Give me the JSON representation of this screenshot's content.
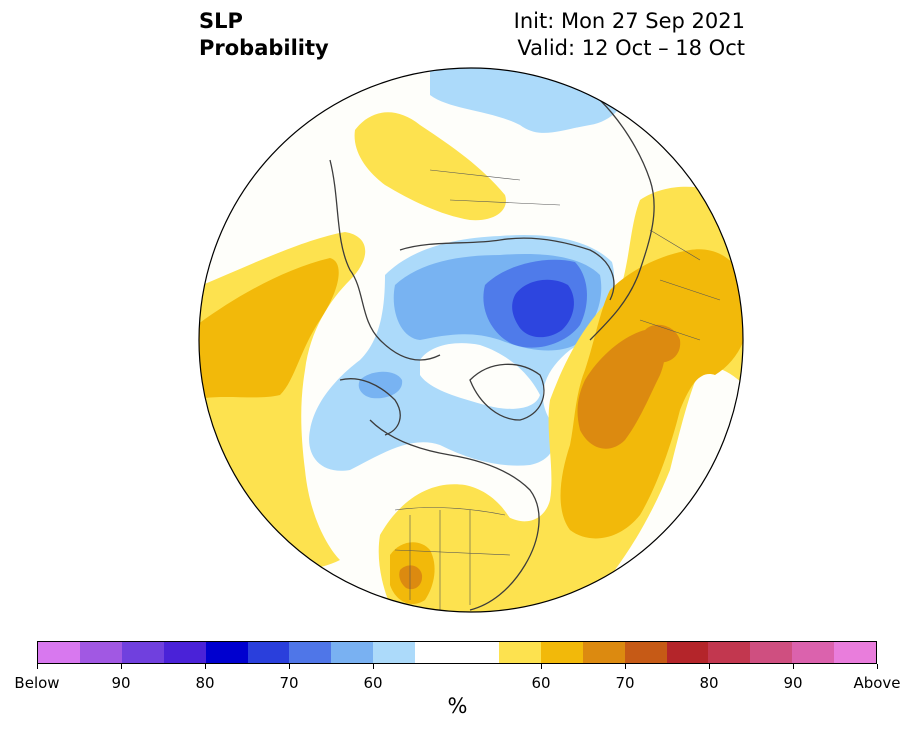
{
  "header": {
    "variable": "SLP",
    "product": "Probability",
    "init": "Init: Mon 27 Sep 2021",
    "valid": "Valid: 12 Oct – 18 Oct"
  },
  "map": {
    "projection": "north-polar-stereographic",
    "fill_colors": {
      "above_50_60": "#fde24f",
      "above_60_65": "#f2b90a",
      "above_65_70": "#dc8a10",
      "below_50_60": "#acdafa",
      "below_60_65": "#78b3f2",
      "below_65_70": "#4f7bea",
      "below_70_75": "#2d45df"
    }
  },
  "colorbar": {
    "colors": [
      "#d878ef",
      "#a158e3",
      "#7040de",
      "#4a22d8",
      "#0000cf",
      "#2a3fdc",
      "#4f76e8",
      "#79b1f2",
      "#acdafa",
      "#ffffff",
      "#fde24f",
      "#f2b90a",
      "#dc8a10",
      "#c65a16",
      "#b4252a",
      "#c2374f",
      "#cf4f80",
      "#db62ad",
      "#e97ddc"
    ],
    "tick_labels": [
      "Below",
      "90",
      "80",
      "70",
      "60",
      "60",
      "70",
      "80",
      "90",
      "Above"
    ],
    "unit": "%"
  }
}
